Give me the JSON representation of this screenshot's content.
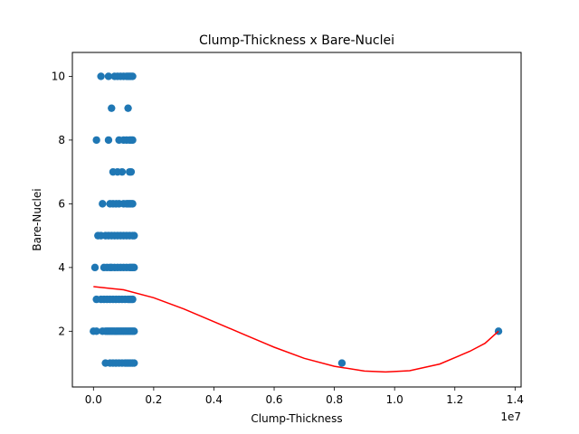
{
  "chart_data": {
    "type": "scatter",
    "title": "Clump-Thickness x Bare-Nuclei",
    "xlabel": "Clump-Thickness",
    "ylabel": "Bare-Nuclei",
    "x_offset_label": "1e7",
    "xlim": [
      -0.07,
      1.42
    ],
    "ylim": [
      0.25,
      10.75
    ],
    "x_ticks": [
      0.0,
      0.2,
      0.4,
      0.6,
      0.8,
      1.0,
      1.2,
      1.4
    ],
    "x_tick_labels": [
      "0.0",
      "0.2",
      "0.4",
      "0.6",
      "0.8",
      "1.0",
      "1.2",
      "1.4"
    ],
    "y_ticks": [
      2,
      4,
      6,
      8,
      10
    ],
    "y_tick_labels": [
      "2",
      "4",
      "6",
      "8",
      "10"
    ],
    "grid": false,
    "colors": {
      "points": "#1f77b4",
      "fit": "#ff0000"
    },
    "series": [
      {
        "kind": "points",
        "x_scale": "1e7",
        "points": [
          [
            0.025,
            10
          ],
          [
            0.05,
            10
          ],
          [
            0.07,
            10
          ],
          [
            0.08,
            10
          ],
          [
            0.09,
            10
          ],
          [
            0.1,
            10
          ],
          [
            0.11,
            10
          ],
          [
            0.115,
            10
          ],
          [
            0.12,
            10
          ],
          [
            0.125,
            10
          ],
          [
            0.13,
            10
          ],
          [
            0.06,
            9
          ],
          [
            0.115,
            9
          ],
          [
            0.01,
            8
          ],
          [
            0.05,
            8
          ],
          [
            0.085,
            8
          ],
          [
            0.1,
            8
          ],
          [
            0.11,
            8
          ],
          [
            0.12,
            8
          ],
          [
            0.125,
            8
          ],
          [
            0.13,
            8
          ],
          [
            0.065,
            7
          ],
          [
            0.08,
            7
          ],
          [
            0.095,
            7
          ],
          [
            0.12,
            7
          ],
          [
            0.125,
            7
          ],
          [
            0.03,
            6
          ],
          [
            0.055,
            6
          ],
          [
            0.065,
            6
          ],
          [
            0.075,
            6
          ],
          [
            0.085,
            6
          ],
          [
            0.1,
            6
          ],
          [
            0.11,
            6
          ],
          [
            0.115,
            6
          ],
          [
            0.12,
            6
          ],
          [
            0.125,
            6
          ],
          [
            0.13,
            6
          ],
          [
            0.015,
            5
          ],
          [
            0.025,
            5
          ],
          [
            0.04,
            5
          ],
          [
            0.05,
            5
          ],
          [
            0.06,
            5
          ],
          [
            0.07,
            5
          ],
          [
            0.08,
            5
          ],
          [
            0.09,
            5
          ],
          [
            0.1,
            5
          ],
          [
            0.11,
            5
          ],
          [
            0.12,
            5
          ],
          [
            0.13,
            5
          ],
          [
            0.135,
            5
          ],
          [
            0.005,
            4
          ],
          [
            0.035,
            4
          ],
          [
            0.045,
            4
          ],
          [
            0.055,
            4
          ],
          [
            0.06,
            4
          ],
          [
            0.07,
            4
          ],
          [
            0.08,
            4
          ],
          [
            0.09,
            4
          ],
          [
            0.1,
            4
          ],
          [
            0.11,
            4
          ],
          [
            0.12,
            4
          ],
          [
            0.125,
            4
          ],
          [
            0.13,
            4
          ],
          [
            0.135,
            4
          ],
          [
            0.01,
            3
          ],
          [
            0.025,
            3
          ],
          [
            0.035,
            3
          ],
          [
            0.045,
            3
          ],
          [
            0.055,
            3
          ],
          [
            0.065,
            3
          ],
          [
            0.075,
            3
          ],
          [
            0.085,
            3
          ],
          [
            0.095,
            3
          ],
          [
            0.105,
            3
          ],
          [
            0.115,
            3
          ],
          [
            0.12,
            3
          ],
          [
            0.125,
            3
          ],
          [
            0.13,
            3
          ],
          [
            0.0,
            2
          ],
          [
            0.01,
            2
          ],
          [
            0.03,
            2
          ],
          [
            0.04,
            2
          ],
          [
            0.045,
            2
          ],
          [
            0.05,
            2
          ],
          [
            0.055,
            2
          ],
          [
            0.06,
            2
          ],
          [
            0.065,
            2
          ],
          [
            0.07,
            2
          ],
          [
            0.075,
            2
          ],
          [
            0.08,
            2
          ],
          [
            0.085,
            2
          ],
          [
            0.09,
            2
          ],
          [
            0.095,
            2
          ],
          [
            0.1,
            2
          ],
          [
            0.105,
            2
          ],
          [
            0.11,
            2
          ],
          [
            0.115,
            2
          ],
          [
            0.12,
            2
          ],
          [
            0.125,
            2
          ],
          [
            0.13,
            2
          ],
          [
            0.135,
            2
          ],
          [
            0.04,
            1
          ],
          [
            0.055,
            1
          ],
          [
            0.065,
            1
          ],
          [
            0.075,
            1
          ],
          [
            0.085,
            1
          ],
          [
            0.095,
            1
          ],
          [
            0.105,
            1
          ],
          [
            0.11,
            1
          ],
          [
            0.115,
            1
          ],
          [
            0.12,
            1
          ],
          [
            0.125,
            1
          ],
          [
            0.13,
            1
          ],
          [
            0.135,
            1
          ],
          [
            0.825,
            1
          ],
          [
            1.345,
            2
          ]
        ]
      },
      {
        "kind": "line",
        "x_scale": "1e7",
        "points": [
          [
            0.0,
            3.4
          ],
          [
            0.1,
            3.3
          ],
          [
            0.2,
            3.05
          ],
          [
            0.3,
            2.7
          ],
          [
            0.4,
            2.3
          ],
          [
            0.5,
            1.9
          ],
          [
            0.6,
            1.5
          ],
          [
            0.7,
            1.15
          ],
          [
            0.8,
            0.9
          ],
          [
            0.9,
            0.75
          ],
          [
            0.97,
            0.72
          ],
          [
            1.05,
            0.76
          ],
          [
            1.15,
            0.97
          ],
          [
            1.25,
            1.37
          ],
          [
            1.3,
            1.62
          ],
          [
            1.345,
            2.0
          ]
        ]
      }
    ]
  }
}
